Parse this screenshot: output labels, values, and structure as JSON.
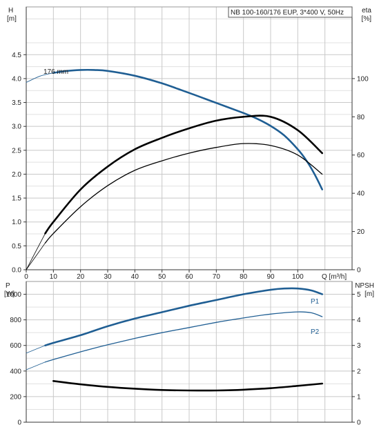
{
  "chart_data": [
    {
      "type": "line",
      "panel": "head-efficiency",
      "title": "NB 100-160/176 EUP, 3*400 V, 50Hz",
      "ylabel_left": "H",
      "ylabel_left_unit": "[m]",
      "ylabel_right": "eta",
      "ylabel_right_unit": "[%]",
      "xlabel": "Q [m³/h]",
      "xlim": [
        0,
        120
      ],
      "ylim_left": [
        0,
        5.5
      ],
      "ylim_right": [
        0,
        137.5
      ],
      "x_ticks": [
        "0",
        "10",
        "20",
        "30",
        "40",
        "50",
        "60",
        "70",
        "80",
        "90",
        "100"
      ],
      "y_ticks_left": [
        "0.0",
        "0.5",
        "1.0",
        "1.5",
        "2.0",
        "2.5",
        "3.0",
        "3.5",
        "4.0",
        "4.5"
      ],
      "y_ticks_right": [
        "0",
        "20",
        "40",
        "60",
        "80",
        "100"
      ],
      "annotation": "176 mm",
      "grid": true,
      "series": [
        {
          "key": "head",
          "axis": "left",
          "color": "#1f5e93",
          "x": [
            0,
            5,
            10,
            15,
            20,
            25,
            30,
            40,
            50,
            60,
            70,
            80,
            85,
            90,
            95,
            100,
            103,
            106,
            109
          ],
          "y": [
            3.92,
            4.05,
            4.12,
            4.16,
            4.18,
            4.18,
            4.16,
            4.06,
            3.9,
            3.7,
            3.49,
            3.28,
            3.16,
            3.01,
            2.81,
            2.52,
            2.3,
            2.02,
            1.68
          ]
        },
        {
          "key": "eta-p1",
          "axis": "right",
          "color": "#000000",
          "x": [
            0,
            7,
            10,
            20,
            30,
            40,
            50,
            60,
            70,
            80,
            90,
            100,
            109
          ],
          "y": [
            0,
            19,
            25,
            42,
            54,
            63,
            69,
            74,
            78,
            80,
            80,
            73,
            61
          ]
        },
        {
          "key": "eta-p2",
          "axis": "right",
          "color": "#000000",
          "x": [
            0,
            7,
            10,
            20,
            30,
            40,
            50,
            60,
            70,
            80,
            90,
            100,
            109
          ],
          "y": [
            0,
            14,
            19,
            33,
            44,
            52,
            57,
            61,
            64,
            66,
            65,
            60,
            50
          ]
        }
      ]
    },
    {
      "type": "line",
      "panel": "power-npsh",
      "ylabel_left": "P",
      "ylabel_left_unit": "[W]",
      "ylabel_right": "NPSH",
      "ylabel_right_unit": "[m]",
      "xlim": [
        0,
        120
      ],
      "ylim_left": [
        0,
        1100
      ],
      "ylim_right": [
        0,
        5.5
      ],
      "y_ticks_left": [
        "0",
        "200",
        "400",
        "600",
        "800",
        "1000"
      ],
      "y_ticks_right": [
        "0",
        "1",
        "2",
        "3",
        "4",
        "5"
      ],
      "grid": true,
      "series": [
        {
          "name": "P1",
          "axis": "left",
          "color": "#1f5e93",
          "x": [
            0,
            7,
            10,
            20,
            30,
            40,
            50,
            60,
            70,
            80,
            90,
            95,
            100,
            105,
            109
          ],
          "y": [
            540,
            600,
            620,
            680,
            750,
            810,
            860,
            910,
            955,
            1000,
            1035,
            1045,
            1045,
            1030,
            1000
          ]
        },
        {
          "name": "P2",
          "axis": "left",
          "color": "#1f5e93",
          "x": [
            0,
            7,
            10,
            20,
            30,
            40,
            50,
            60,
            70,
            80,
            90,
            100,
            105,
            109
          ],
          "y": [
            410,
            470,
            490,
            550,
            605,
            655,
            700,
            740,
            780,
            815,
            845,
            862,
            855,
            825
          ]
        },
        {
          "key": "npsh",
          "axis": "right",
          "color": "#000000",
          "x": [
            0,
            10,
            20,
            30,
            40,
            50,
            60,
            70,
            80,
            90,
            100,
            109
          ],
          "y": [
            1.75,
            1.61,
            1.48,
            1.38,
            1.31,
            1.26,
            1.24,
            1.24,
            1.27,
            1.33,
            1.42,
            1.51
          ]
        }
      ]
    }
  ]
}
